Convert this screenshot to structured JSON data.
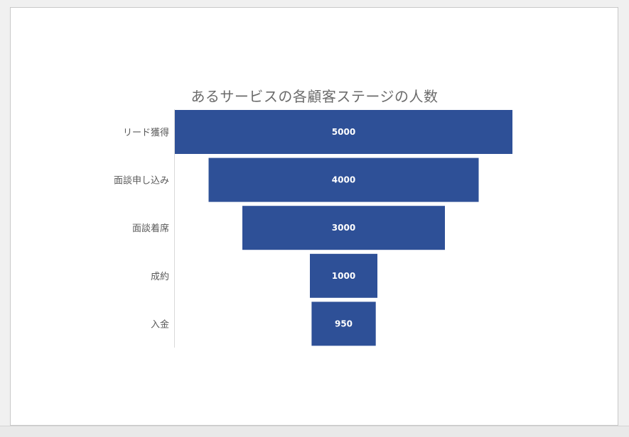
{
  "chart_data": {
    "type": "funnel",
    "title": "あるサービスの各顧客ステージの人数",
    "categories": [
      "リード獲得",
      "面談申し込み",
      "面談着席",
      "成約",
      "入金"
    ],
    "values": [
      5000,
      4000,
      3000,
      1000,
      950
    ],
    "xlim": [
      0,
      5000
    ],
    "color": "#2e5097",
    "grid": false
  }
}
